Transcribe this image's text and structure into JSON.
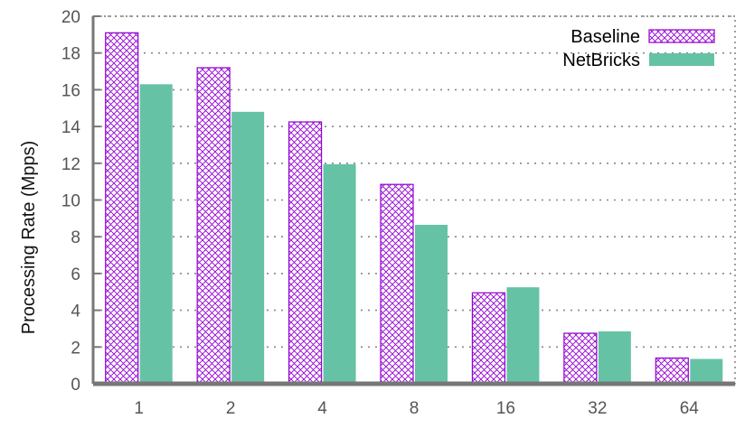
{
  "chart_data": {
    "type": "bar",
    "title": "",
    "xlabel": "",
    "ylabel": "Processing Rate (Mpps)",
    "categories": [
      "1",
      "2",
      "4",
      "8",
      "16",
      "32",
      "64"
    ],
    "series": [
      {
        "name": "Baseline",
        "values": [
          19.1,
          17.2,
          14.25,
          10.85,
          4.95,
          2.75,
          1.4
        ],
        "color": "#9400d3",
        "pattern": "crosshatch"
      },
      {
        "name": "NetBricks",
        "values": [
          16.3,
          14.8,
          11.95,
          8.65,
          5.25,
          2.85,
          1.35
        ],
        "color": "#66c2a5",
        "pattern": "solid"
      }
    ],
    "ylim": [
      0,
      20
    ],
    "yticks": [
      0,
      2,
      4,
      6,
      8,
      10,
      12,
      14,
      16,
      18,
      20
    ],
    "grid": "dotted-y",
    "legend": "top-right"
  }
}
